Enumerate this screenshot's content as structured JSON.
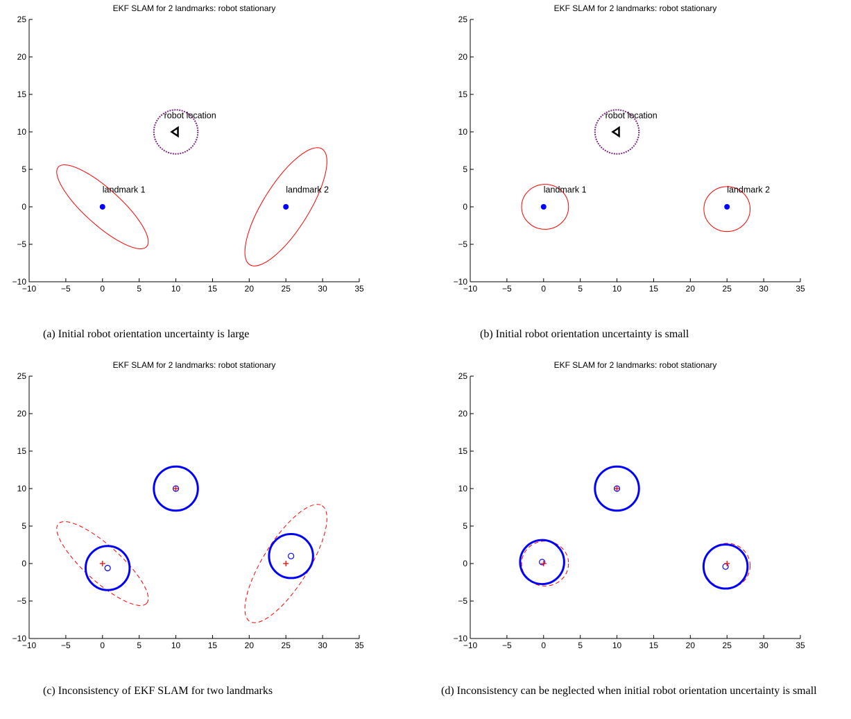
{
  "figure": {
    "captions": [
      "(a) Initial robot orientation uncertainty is large",
      "(b) Initial robot orientation uncertainty is small",
      "(c) Inconsistency of EKF SLAM for two landmarks",
      "(d) Inconsistency can be neglected when initial robot orientation uncertainty is small"
    ]
  },
  "colors": {
    "red": "#ff0000",
    "blue": "#0000ff",
    "purple": "#7f2a80",
    "black": "#000000"
  },
  "chart_data": [
    {
      "type": "scatter",
      "title": "EKF SLAM for 2 landmarks: robot stationary",
      "xlim": [
        -10,
        35
      ],
      "ylim": [
        -10,
        25
      ],
      "xticks": [
        -10,
        -5,
        0,
        5,
        10,
        15,
        20,
        25,
        30,
        35
      ],
      "yticks": [
        -10,
        -5,
        0,
        5,
        10,
        15,
        20,
        25
      ],
      "robot": {
        "x": 10,
        "y": 10,
        "circle_radius": 3
      },
      "landmarks": [
        {
          "x": 0,
          "y": 0
        },
        {
          "x": 25,
          "y": 0
        }
      ],
      "ellipses": [
        {
          "cx": 0,
          "cy": 0,
          "a": 8.1,
          "b": 2.4,
          "angle_deg": -42,
          "style": "solid"
        },
        {
          "cx": 25,
          "cy": 0,
          "a": 9.3,
          "b": 3.05,
          "angle_deg": 58,
          "style": "solid"
        }
      ],
      "annotations": [
        {
          "text": "robot location",
          "x": 8.4,
          "y": 11.6
        },
        {
          "text": "landmark 1",
          "x": 0,
          "y": 1.7
        },
        {
          "text": "landmark 2",
          "x": 25,
          "y": 1.7
        }
      ]
    },
    {
      "type": "scatter",
      "title": "EKF SLAM for 2 landmarks: robot stationary",
      "xlim": [
        -10,
        35
      ],
      "ylim": [
        -10,
        25
      ],
      "xticks": [
        -10,
        -5,
        0,
        5,
        10,
        15,
        20,
        25,
        30,
        35
      ],
      "yticks": [
        -10,
        -5,
        0,
        5,
        10,
        15,
        20,
        25
      ],
      "robot": {
        "x": 10,
        "y": 10,
        "circle_radius": 3
      },
      "landmarks": [
        {
          "x": 0,
          "y": 0
        },
        {
          "x": 25,
          "y": 0
        }
      ],
      "ellipses": [
        {
          "cx": 0.2,
          "cy": 0,
          "a": 3.2,
          "b": 3.0,
          "angle_deg": 0,
          "style": "solid"
        },
        {
          "cx": 25,
          "cy": -0.3,
          "a": 3.15,
          "b": 3.0,
          "angle_deg": 0,
          "style": "solid"
        }
      ],
      "annotations": [
        {
          "text": "robot location",
          "x": 8.4,
          "y": 11.6
        },
        {
          "text": "landmark 1",
          "x": 0,
          "y": 1.7
        },
        {
          "text": "landmark 2",
          "x": 25,
          "y": 1.7
        }
      ]
    },
    {
      "type": "scatter",
      "title": "EKF SLAM for 2 landmarks: robot stationary",
      "xlim": [
        -10,
        35
      ],
      "ylim": [
        -10,
        25
      ],
      "xticks": [
        -10,
        -5,
        0,
        5,
        10,
        15,
        20,
        25,
        30,
        35
      ],
      "yticks": [
        -10,
        -5,
        0,
        5,
        10,
        15,
        20,
        25
      ],
      "blue_circles": [
        {
          "cx": 10,
          "cy": 10,
          "r": 3
        },
        {
          "cx": 0.7,
          "cy": -0.6,
          "r": 3
        },
        {
          "cx": 25.7,
          "cy": 1,
          "r": 3
        }
      ],
      "blue_markers": [
        {
          "x": 10,
          "y": 10
        },
        {
          "x": 0.7,
          "y": -0.6
        },
        {
          "x": 25.7,
          "y": 1
        }
      ],
      "red_markers": [
        {
          "x": 10,
          "y": 10
        },
        {
          "x": 0,
          "y": 0
        },
        {
          "x": 25,
          "y": 0
        }
      ],
      "ellipses": [
        {
          "cx": 0,
          "cy": 0,
          "a": 8.1,
          "b": 2.4,
          "angle_deg": -42,
          "style": "dashed"
        },
        {
          "cx": 25,
          "cy": 0,
          "a": 9.3,
          "b": 3.05,
          "angle_deg": 58,
          "style": "dashed"
        }
      ]
    },
    {
      "type": "scatter",
      "title": "EKF SLAM for 2 landmarks: robot stationary",
      "xlim": [
        -10,
        35
      ],
      "ylim": [
        -10,
        25
      ],
      "xticks": [
        -10,
        -5,
        0,
        5,
        10,
        15,
        20,
        25,
        30,
        35
      ],
      "yticks": [
        -10,
        -5,
        0,
        5,
        10,
        15,
        20,
        25
      ],
      "blue_circles": [
        {
          "cx": 10,
          "cy": 10,
          "r": 3
        },
        {
          "cx": -0.2,
          "cy": 0.2,
          "r": 3
        },
        {
          "cx": 24.8,
          "cy": -0.4,
          "r": 3
        }
      ],
      "blue_markers": [
        {
          "x": 10,
          "y": 10
        },
        {
          "x": -0.2,
          "y": 0.2
        },
        {
          "x": 24.8,
          "y": -0.4
        }
      ],
      "red_markers": [
        {
          "x": 10,
          "y": 10
        },
        {
          "x": 0,
          "y": 0
        },
        {
          "x": 25,
          "y": 0
        }
      ],
      "ellipses": [
        {
          "cx": 0.2,
          "cy": 0,
          "a": 3.2,
          "b": 3.0,
          "angle_deg": 0,
          "style": "dashed"
        },
        {
          "cx": 25,
          "cy": -0.3,
          "a": 3.15,
          "b": 3.0,
          "angle_deg": 0,
          "style": "dashed"
        }
      ]
    }
  ]
}
